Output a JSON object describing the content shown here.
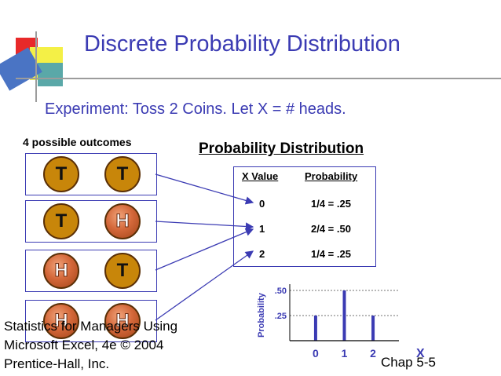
{
  "title": "Discrete Probability Distribution",
  "subtitle": "Experiment:  Toss 2 Coins.    Let  X = # heads.",
  "outcomes_heading": "4 possible outcomes",
  "outcomes": [
    {
      "coins": [
        "T",
        "T"
      ]
    },
    {
      "coins": [
        "T",
        "H"
      ]
    },
    {
      "coins": [
        "H",
        "T"
      ]
    },
    {
      "coins": [
        "H",
        "H"
      ]
    }
  ],
  "distribution_heading": "Probability Distribution",
  "table": {
    "headers": [
      "X Value",
      "Probability"
    ],
    "rows": [
      {
        "x": "0",
        "p": "1/4 = .25"
      },
      {
        "x": "1",
        "p": "2/4 = .50"
      },
      {
        "x": "2",
        "p": "1/4 = .25"
      }
    ]
  },
  "footer_left": [
    "Statistics for Managers Using",
    "Microsoft Excel, 4e © 2004",
    "Prentice-Hall, Inc."
  ],
  "footer_right": "Chap 5-5",
  "colors": {
    "title": "#3b3bb3",
    "bars": "#3b3bb3",
    "tails_coin": "#c8860a",
    "heads_coin": "#d4683a"
  },
  "chart_data": {
    "type": "bar",
    "x": [
      0,
      1,
      2
    ],
    "values": [
      0.25,
      0.5,
      0.25
    ],
    "xlabel": "X",
    "ylabel": "Probability",
    "ytick_labels": [
      ".25",
      ".50"
    ],
    "xtick_labels": [
      "0",
      "1",
      "2"
    ],
    "ylim": [
      0,
      0.5
    ],
    "grid": "dashed horizontal at .25 and .50"
  }
}
